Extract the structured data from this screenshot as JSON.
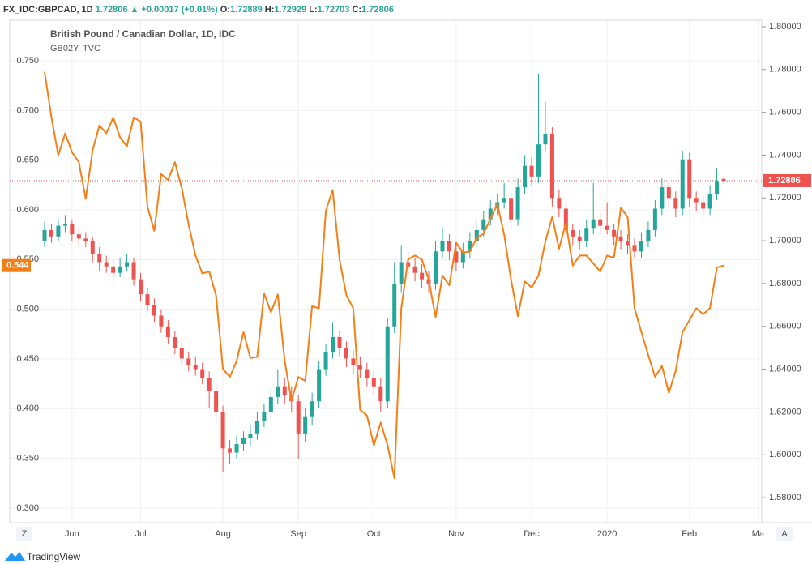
{
  "chart_data": {
    "type": "candlestick",
    "header": {
      "symbol": "FX_IDC:GBPCAD, 1D",
      "change": "▲ +0.00017 (+0.01%)",
      "o": "O:",
      "h": "H:",
      "l": "L:",
      "c": "C:"
    },
    "controls": [
      "Z",
      "A"
    ],
    "brand": "TradingView",
    "categories": [
      null,
      null,
      null,
      null,
      "Jun",
      null,
      null,
      null,
      null,
      null,
      null,
      null,
      null,
      null,
      "Jul",
      null,
      null,
      null,
      null,
      null,
      null,
      null,
      null,
      null,
      null,
      null,
      "Aug",
      null,
      null,
      null,
      null,
      null,
      null,
      null,
      null,
      null,
      null,
      "Sep",
      null,
      null,
      null,
      null,
      null,
      null,
      null,
      null,
      null,
      null,
      "Oct",
      null,
      null,
      null,
      null,
      null,
      null,
      null,
      null,
      null,
      null,
      null,
      "Nov",
      null,
      null,
      null,
      null,
      null,
      null,
      null,
      null,
      null,
      null,
      "Dec",
      null,
      null,
      null,
      null,
      null,
      null,
      null,
      null,
      null,
      null,
      "2020",
      null,
      null,
      null,
      null,
      null,
      null,
      null,
      null,
      null,
      null,
      null,
      "Feb",
      null,
      null,
      null,
      null,
      null,
      null,
      null,
      null,
      null,
      "Ma",
      null
    ],
    "ylim": [
      0.2853,
      0.7908
    ],
    "yticks": [
      {
        "value": 0.3,
        "label": "0.300"
      },
      {
        "value": 0.35,
        "label": "0.350"
      },
      {
        "value": 0.4,
        "label": "0.400"
      },
      {
        "value": 0.45,
        "label": "0.450"
      },
      {
        "value": 0.5,
        "label": "0.500"
      },
      {
        "value": 0.55,
        "label": "0.550"
      },
      {
        "value": 0.6,
        "label": "0.600"
      },
      {
        "value": 0.65,
        "label": "0.650"
      },
      {
        "value": 0.7,
        "label": "0.700"
      },
      {
        "value": 0.75,
        "label": "0.750"
      }
    ],
    "y2lim": [
      1.5683,
      1.803
    ],
    "y2ticks": [
      {
        "value": 1.58,
        "label": "1.58000"
      },
      {
        "value": 1.6,
        "label": "1.60000"
      },
      {
        "value": 1.62,
        "label": "1.62000"
      },
      {
        "value": 1.64,
        "label": "1.64000"
      },
      {
        "value": 1.66,
        "label": "1.66000"
      },
      {
        "value": 1.68,
        "label": "1.68000"
      },
      {
        "value": 1.7,
        "label": "1.70000"
      },
      {
        "value": 1.72,
        "label": "1.72000"
      },
      {
        "value": 1.74,
        "label": "1.74000"
      },
      {
        "value": 1.76,
        "label": "1.76000"
      },
      {
        "value": 1.78,
        "label": "1.78000"
      },
      {
        "value": 1.8,
        "label": "1.80000"
      }
    ],
    "grid": true,
    "series": [
      {
        "name": "British Pound / Canadian Dollar, 1D, IDC",
        "type": "candlestick",
        "axis": "y2",
        "up_color": "#26a69a",
        "down_color": "#ef5350",
        "values": [
          [
            1.7,
            1.709,
            1.697,
            1.705
          ],
          [
            1.705,
            1.708,
            1.699,
            1.702
          ],
          [
            1.702,
            1.71,
            1.7,
            1.707
          ],
          [
            1.707,
            1.712,
            1.704,
            1.708
          ],
          [
            1.708,
            1.71,
            1.7,
            1.703
          ],
          [
            1.703,
            1.706,
            1.698,
            1.701
          ],
          [
            1.701,
            1.704,
            1.697,
            1.7
          ],
          [
            1.7,
            1.702,
            1.69,
            1.694
          ],
          [
            1.694,
            1.697,
            1.686,
            1.69
          ],
          [
            1.69,
            1.693,
            1.685,
            1.688
          ],
          [
            1.688,
            1.691,
            1.682,
            1.685
          ],
          [
            1.685,
            1.692,
            1.683,
            1.688
          ],
          [
            1.688,
            1.694,
            1.686,
            1.69
          ],
          [
            1.69,
            1.692,
            1.679,
            1.682
          ],
          [
            1.682,
            1.685,
            1.672,
            1.675
          ],
          [
            1.675,
            1.678,
            1.667,
            1.67
          ],
          [
            1.67,
            1.673,
            1.662,
            1.665
          ],
          [
            1.665,
            1.668,
            1.657,
            1.66
          ],
          [
            1.66,
            1.663,
            1.652,
            1.655
          ],
          [
            1.655,
            1.658,
            1.647,
            1.65
          ],
          [
            1.65,
            1.653,
            1.642,
            1.645
          ],
          [
            1.645,
            1.648,
            1.639,
            1.642
          ],
          [
            1.642,
            1.646,
            1.637,
            1.64
          ],
          [
            1.64,
            1.643,
            1.633,
            1.636
          ],
          [
            1.636,
            1.639,
            1.622,
            1.63
          ],
          [
            1.63,
            1.633,
            1.615,
            1.62
          ],
          [
            1.62,
            1.623,
            1.592,
            1.603
          ],
          [
            1.603,
            1.607,
            1.596,
            1.601
          ],
          [
            1.601,
            1.609,
            1.598,
            1.605
          ],
          [
            1.605,
            1.611,
            1.602,
            1.608
          ],
          [
            1.608,
            1.614,
            1.604,
            1.61
          ],
          [
            1.61,
            1.62,
            1.607,
            1.616
          ],
          [
            1.616,
            1.624,
            1.613,
            1.62
          ],
          [
            1.62,
            1.631,
            1.617,
            1.627
          ],
          [
            1.627,
            1.64,
            1.624,
            1.632
          ],
          [
            1.632,
            1.636,
            1.624,
            1.628
          ],
          [
            1.628,
            1.632,
            1.62,
            1.625
          ],
          [
            1.625,
            1.628,
            1.598,
            1.61
          ],
          [
            1.61,
            1.622,
            1.606,
            1.618
          ],
          [
            1.618,
            1.629,
            1.614,
            1.625
          ],
          [
            1.625,
            1.644,
            1.622,
            1.64
          ],
          [
            1.64,
            1.652,
            1.637,
            1.648
          ],
          [
            1.648,
            1.662,
            1.645,
            1.655
          ],
          [
            1.655,
            1.658,
            1.646,
            1.65
          ],
          [
            1.65,
            1.653,
            1.641,
            1.645
          ],
          [
            1.645,
            1.649,
            1.638,
            1.642
          ],
          [
            1.642,
            1.646,
            1.636,
            1.64
          ],
          [
            1.64,
            1.643,
            1.632,
            1.636
          ],
          [
            1.636,
            1.639,
            1.628,
            1.632
          ],
          [
            1.632,
            1.636,
            1.62,
            1.625
          ],
          [
            1.625,
            1.664,
            1.622,
            1.66
          ],
          [
            1.66,
            1.69,
            1.657,
            1.68
          ],
          [
            1.68,
            1.698,
            1.676,
            1.69
          ],
          [
            1.69,
            1.695,
            1.684,
            1.688
          ],
          [
            1.688,
            1.692,
            1.681,
            1.685
          ],
          [
            1.685,
            1.689,
            1.678,
            1.682
          ],
          [
            1.682,
            1.686,
            1.676,
            1.68
          ],
          [
            1.68,
            1.7,
            1.677,
            1.695
          ],
          [
            1.695,
            1.706,
            1.692,
            1.7
          ],
          [
            1.7,
            1.703,
            1.691,
            1.695
          ],
          [
            1.695,
            1.698,
            1.686,
            1.69
          ],
          [
            1.69,
            1.699,
            1.687,
            1.695
          ],
          [
            1.695,
            1.704,
            1.692,
            1.7
          ],
          [
            1.7,
            1.709,
            1.697,
            1.705
          ],
          [
            1.705,
            1.714,
            1.702,
            1.71
          ],
          [
            1.71,
            1.719,
            1.707,
            1.715
          ],
          [
            1.715,
            1.722,
            1.712,
            1.718
          ],
          [
            1.718,
            1.727,
            1.715,
            1.72
          ],
          [
            1.72,
            1.723,
            1.706,
            1.71
          ],
          [
            1.71,
            1.729,
            1.707,
            1.725
          ],
          [
            1.725,
            1.74,
            1.722,
            1.735
          ],
          [
            1.735,
            1.739,
            1.726,
            1.73
          ],
          [
            1.73,
            1.778,
            1.727,
            1.745
          ],
          [
            1.745,
            1.765,
            1.742,
            1.75
          ],
          [
            1.75,
            1.753,
            1.716,
            1.72
          ],
          [
            1.72,
            1.724,
            1.711,
            1.715
          ],
          [
            1.715,
            1.718,
            1.701,
            1.705
          ],
          [
            1.705,
            1.708,
            1.698,
            1.702
          ],
          [
            1.702,
            1.705,
            1.696,
            1.7
          ],
          [
            1.7,
            1.71,
            1.697,
            1.706
          ],
          [
            1.706,
            1.727,
            1.703,
            1.71
          ],
          [
            1.71,
            1.713,
            1.703,
            1.707
          ],
          [
            1.707,
            1.718,
            1.703,
            1.705
          ],
          [
            1.705,
            1.708,
            1.698,
            1.702
          ],
          [
            1.702,
            1.705,
            1.696,
            1.7
          ],
          [
            1.7,
            1.703,
            1.694,
            1.698
          ],
          [
            1.698,
            1.701,
            1.692,
            1.695
          ],
          [
            1.695,
            1.704,
            1.692,
            1.7
          ],
          [
            1.7,
            1.709,
            1.697,
            1.705
          ],
          [
            1.705,
            1.719,
            1.702,
            1.715
          ],
          [
            1.715,
            1.729,
            1.712,
            1.725
          ],
          [
            1.725,
            1.728,
            1.716,
            1.72
          ],
          [
            1.72,
            1.723,
            1.711,
            1.715
          ],
          [
            1.715,
            1.742,
            1.712,
            1.738
          ],
          [
            1.738,
            1.741,
            1.716,
            1.72
          ],
          [
            1.72,
            1.723,
            1.714,
            1.718
          ],
          [
            1.718,
            1.721,
            1.711,
            1.715
          ],
          [
            1.715,
            1.726,
            1.712,
            1.722
          ],
          [
            1.722,
            1.734,
            1.719,
            1.72789
          ],
          [
            1.72889,
            1.72929,
            1.72703,
            1.72806
          ],
          null,
          null,
          null,
          null,
          null,
          null
        ]
      },
      {
        "name": "GB02Y, TVC",
        "type": "line",
        "color": "#f57f17",
        "values": [
          0.739,
          0.693,
          0.655,
          0.677,
          0.658,
          0.648,
          0.611,
          0.66,
          0.685,
          0.677,
          0.693,
          0.673,
          0.664,
          0.693,
          0.689,
          0.603,
          0.579,
          0.636,
          0.63,
          0.648,
          0.622,
          0.585,
          0.554,
          0.536,
          0.538,
          0.514,
          0.44,
          0.432,
          0.448,
          0.477,
          0.451,
          0.452,
          0.516,
          0.497,
          0.515,
          0.448,
          0.408,
          0.432,
          0.428,
          0.503,
          0.501,
          0.599,
          0.62,
          0.55,
          0.514,
          0.501,
          0.399,
          0.393,
          0.363,
          0.386,
          0.363,
          0.33,
          0.501,
          0.55,
          0.554,
          0.55,
          0.53,
          0.492,
          0.534,
          0.524,
          0.567,
          0.557,
          0.558,
          0.572,
          0.576,
          0.591,
          0.606,
          0.575,
          0.53,
          0.493,
          0.528,
          0.522,
          0.534,
          0.568,
          0.593,
          0.561,
          0.587,
          0.544,
          0.554,
          0.554,
          0.546,
          0.538,
          0.554,
          0.552,
          0.602,
          0.593,
          0.501,
          0.477,
          0.454,
          0.432,
          0.443,
          0.416,
          0.438,
          0.477,
          0.489,
          0.501,
          0.495,
          0.501,
          0.542,
          0.544,
          null,
          null,
          null,
          null,
          null,
          null
        ]
      }
    ]
  }
}
